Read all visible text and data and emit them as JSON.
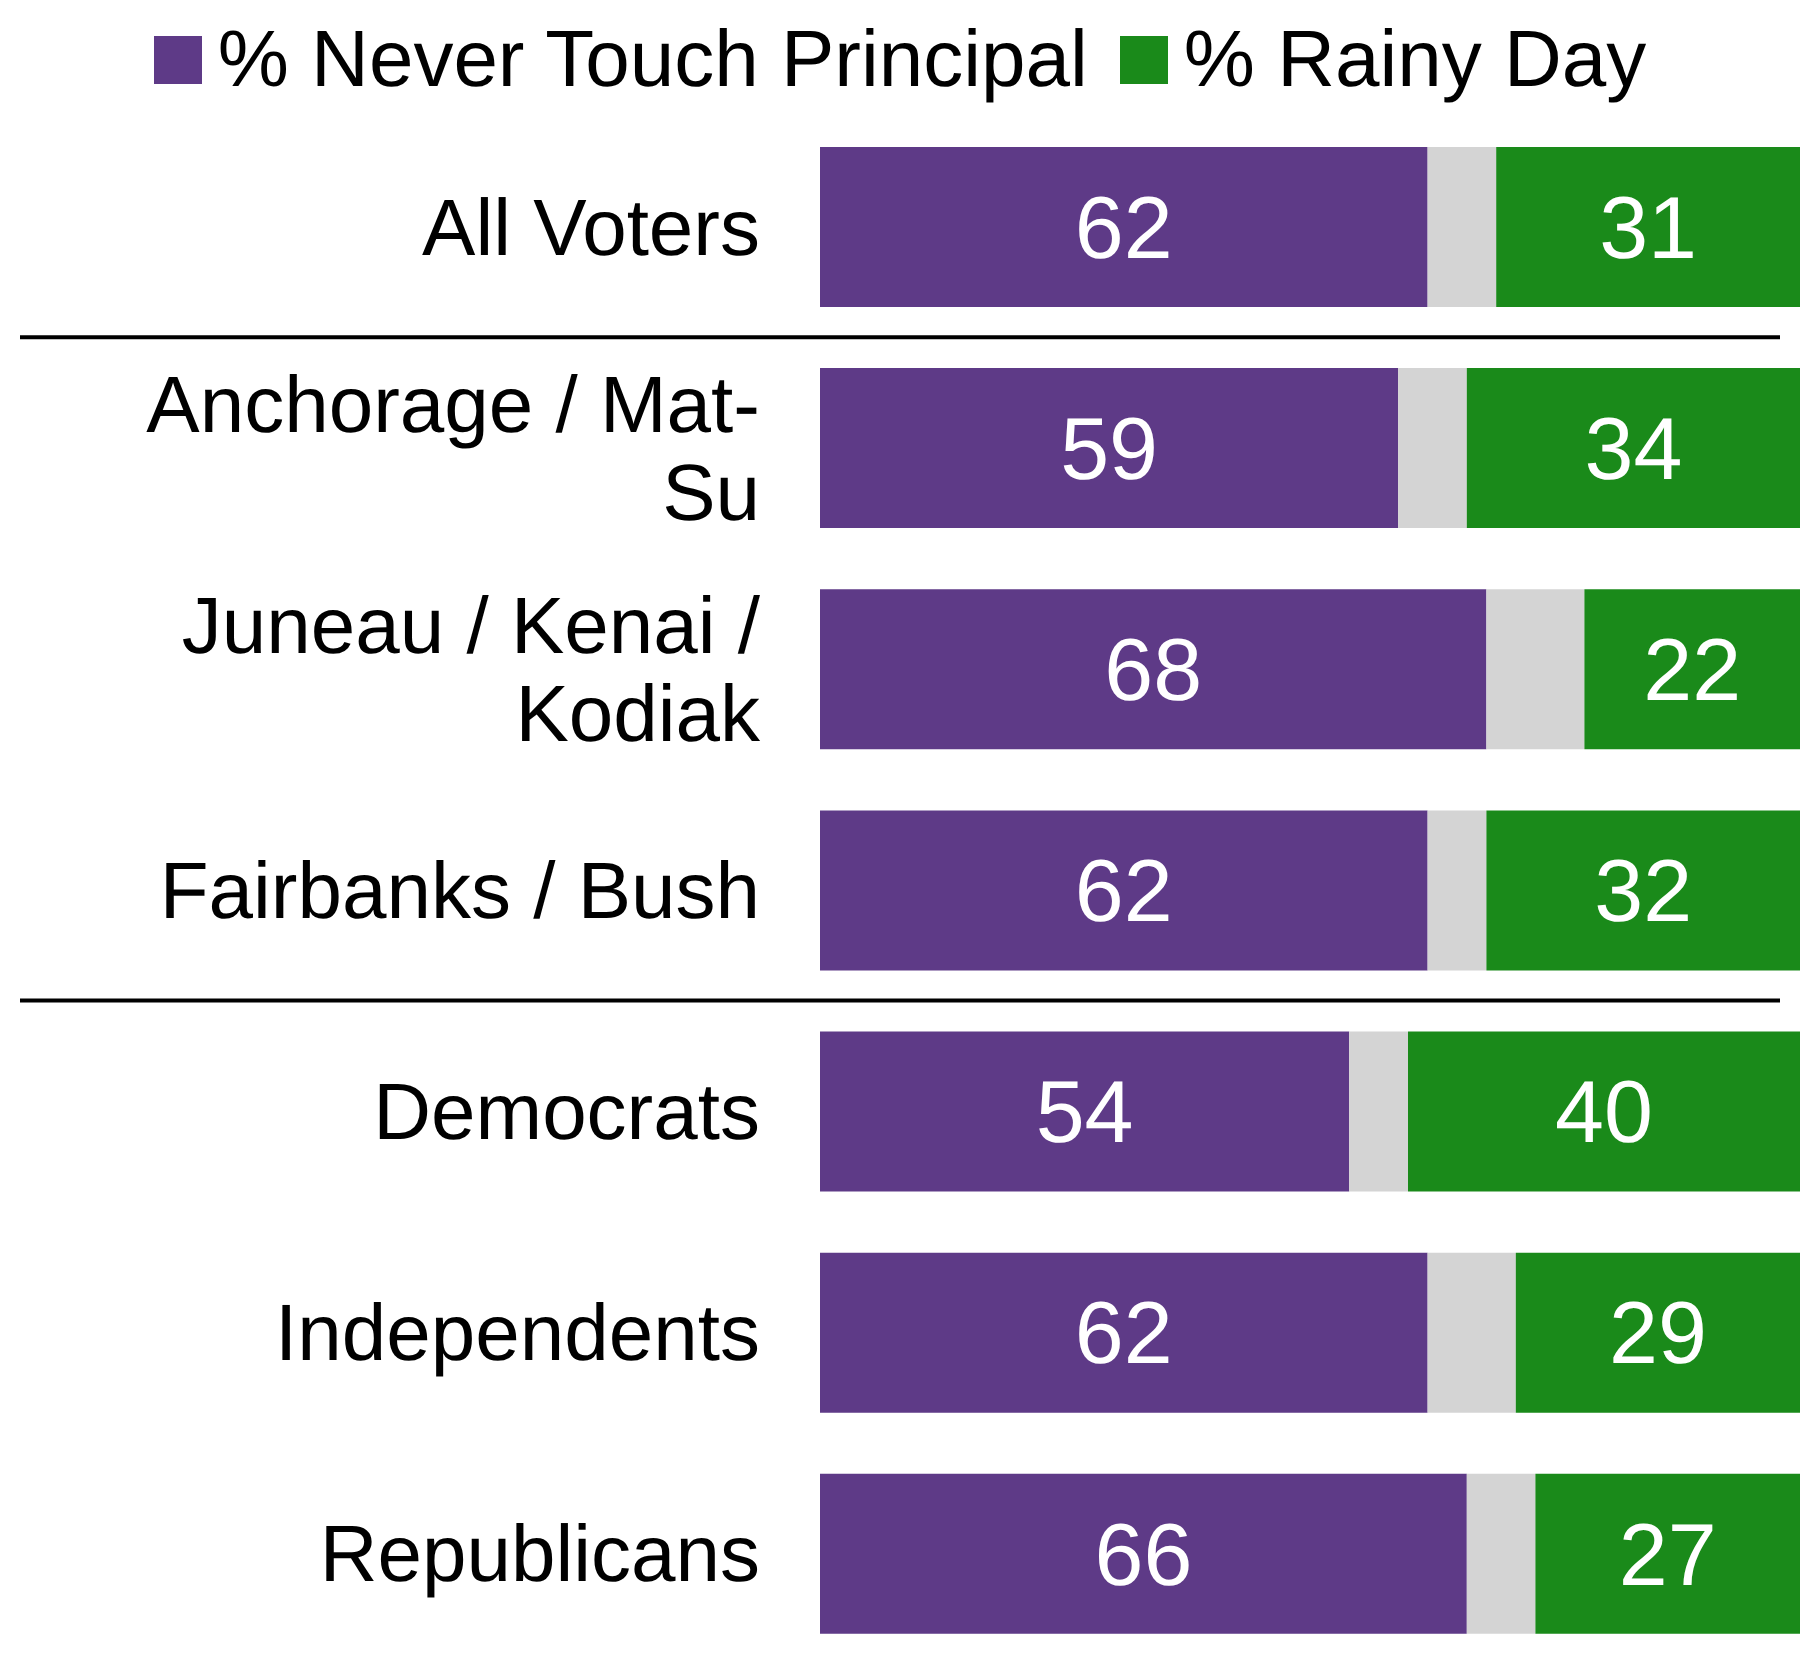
{
  "chart_data": {
    "type": "bar",
    "orientation": "horizontal",
    "stacked": true,
    "legend": "top",
    "tick_labels": "y",
    "categories": [
      "All Voters",
      "Anchorage / Mat-Su",
      "Juneau / Kenai / Kodiak",
      "Fairbanks / Bush",
      "Democrats",
      "Independents",
      "Republicans"
    ],
    "xlim": [
      0,
      100
    ],
    "series": [
      {
        "name": "% Never Touch Principal",
        "color": "#5e3a87",
        "values": [
          62,
          59,
          68,
          62,
          54,
          62,
          66
        ],
        "value_labels": [
          "62",
          "59",
          "68",
          "62",
          "54",
          "62",
          "66"
        ]
      },
      {
        "color": "#d4d4d4",
        "values": [
          7,
          7,
          10,
          6,
          6,
          9,
          7
        ]
      },
      {
        "name": "% Rainy Day",
        "color": "#1a8a1a",
        "values": [
          31,
          34,
          22,
          32,
          40,
          29,
          27
        ],
        "value_labels": [
          "31",
          "34",
          "22",
          "32",
          "40",
          "29",
          "27"
        ]
      }
    ]
  }
}
